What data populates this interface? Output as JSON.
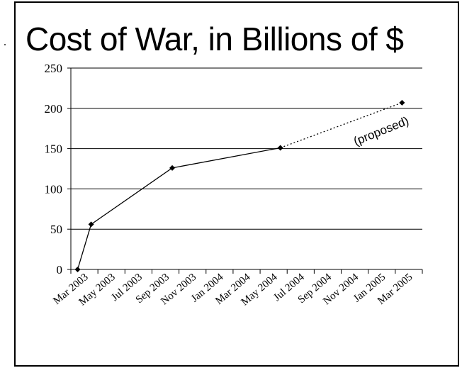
{
  "chart_data": {
    "type": "line",
    "title": "Cost of War, in Billions of $",
    "xlabel": "",
    "ylabel": "",
    "ylim": [
      0,
      250
    ],
    "yticks": [
      0,
      50,
      100,
      150,
      200,
      250
    ],
    "categories": [
      "Mar 2003",
      "May 2003",
      "Jul 2003",
      "Sep 2003",
      "Nov 2003",
      "Jan 2004",
      "Mar 2004",
      "May 2004",
      "Jul 2004",
      "Sep 2004",
      "Nov 2004",
      "Jan 2005",
      "Mar 2005"
    ],
    "grid": "horizontal",
    "series": [
      {
        "style": "solid",
        "points": [
          {
            "x": "Mar 2003",
            "y": 0
          },
          {
            "x": "Apr 2003",
            "y": 56
          },
          {
            "x": "Oct 2003",
            "y": 126
          },
          {
            "x": "Jun 2004",
            "y": 151
          }
        ]
      },
      {
        "style": "dotted",
        "points": [
          {
            "x": "Jun 2004",
            "y": 151
          },
          {
            "x": "Mar 2005",
            "y": 207
          }
        ]
      }
    ],
    "annotations": [
      {
        "text": "(proposed)"
      }
    ]
  }
}
